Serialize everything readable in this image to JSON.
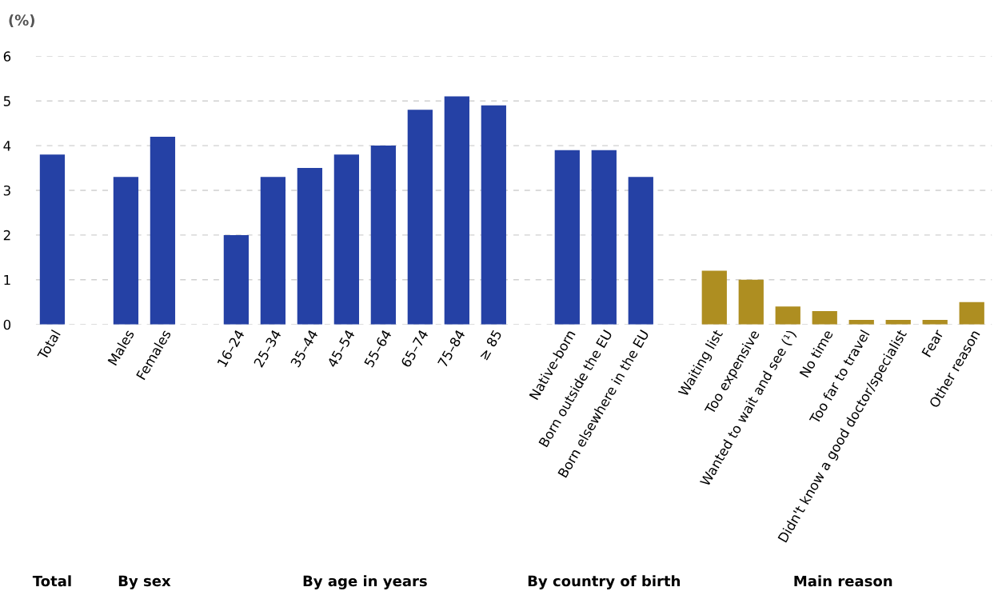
{
  "chart_data": {
    "type": "bar",
    "ylabel": "(%)",
    "categories": [
      "Total",
      null,
      "Males",
      "Females",
      null,
      "16–24",
      "25–34",
      "35–44",
      "45–54",
      "55–64",
      "65–74",
      "75–84",
      "≥ 85",
      null,
      "Native-born",
      "Born outside the EU",
      "Born elsewhere in the EU",
      null,
      "Waiting list",
      "Too expensive",
      "Wanted to wait and see (¹)",
      "No time",
      "Too far to travel",
      "Didn't know a good doctor/specialist",
      "Fear",
      "Other reason"
    ],
    "values": [
      3.8,
      null,
      3.3,
      4.2,
      null,
      2.0,
      3.3,
      3.5,
      3.8,
      4.0,
      4.8,
      5.1,
      4.9,
      null,
      3.9,
      3.9,
      3.3,
      null,
      1.2,
      1.0,
      0.4,
      0.3,
      0.1,
      0.1,
      0.1,
      0.5
    ],
    "colors": [
      "#2541a5",
      null,
      "#2541a5",
      "#2541a5",
      null,
      "#2541a5",
      "#2541a5",
      "#2541a5",
      "#2541a5",
      "#2541a5",
      "#2541a5",
      "#2541a5",
      "#2541a5",
      null,
      "#2541a5",
      "#2541a5",
      "#2541a5",
      null,
      "#ae8e21",
      "#ae8e21",
      "#ae8e21",
      "#ae8e21",
      "#ae8e21",
      "#ae8e21",
      "#ae8e21",
      "#ae8e21"
    ],
    "ylim": [
      0,
      6
    ],
    "yticks": [
      0,
      1,
      2,
      3,
      4,
      5,
      6
    ],
    "grid": "y",
    "annotations": [
      "Total",
      "By sex",
      "By age in years",
      "By country of birth",
      "Main reason"
    ]
  }
}
